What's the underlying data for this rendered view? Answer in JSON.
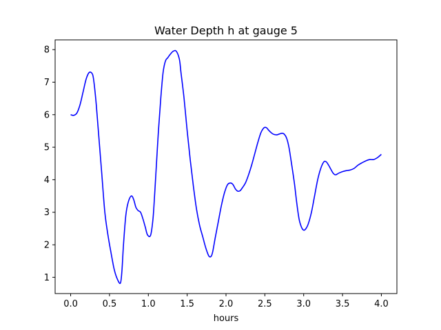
{
  "chart_data": {
    "type": "line",
    "title": "Water Depth h at gauge 5",
    "xlabel": "hours",
    "ylabel": "",
    "xlim": [
      -0.2,
      4.2
    ],
    "ylim": [
      0.5,
      8.3
    ],
    "xticks": [
      0.0,
      0.5,
      1.0,
      1.5,
      2.0,
      2.5,
      3.0,
      3.5,
      4.0
    ],
    "xtick_labels": [
      "0.0",
      "0.5",
      "1.0",
      "1.5",
      "2.0",
      "2.5",
      "3.0",
      "3.5",
      "4.0"
    ],
    "yticks": [
      1,
      2,
      3,
      4,
      5,
      6,
      7,
      8
    ],
    "ytick_labels": [
      "1",
      "2",
      "3",
      "4",
      "5",
      "6",
      "7",
      "8"
    ],
    "grid": false,
    "series": [
      {
        "color": "#0000ff",
        "x": [
          0.0,
          0.04,
          0.08,
          0.12,
          0.16,
          0.2,
          0.24,
          0.28,
          0.3,
          0.33,
          0.36,
          0.4,
          0.44,
          0.48,
          0.52,
          0.56,
          0.6,
          0.64,
          0.66,
          0.68,
          0.71,
          0.74,
          0.78,
          0.81,
          0.84,
          0.87,
          0.9,
          0.93,
          0.96,
          0.99,
          1.03,
          1.06,
          1.08,
          1.1,
          1.13,
          1.16,
          1.19,
          1.22,
          1.25,
          1.28,
          1.32,
          1.36,
          1.4,
          1.42,
          1.46,
          1.5,
          1.54,
          1.58,
          1.62,
          1.66,
          1.7,
          1.74,
          1.78,
          1.81,
          1.83,
          1.86,
          1.9,
          1.94,
          1.98,
          2.02,
          2.06,
          2.09,
          2.12,
          2.15,
          2.18,
          2.21,
          2.25,
          2.29,
          2.33,
          2.37,
          2.41,
          2.45,
          2.49,
          2.52,
          2.55,
          2.58,
          2.61,
          2.65,
          2.68,
          2.72,
          2.75,
          2.78,
          2.81,
          2.84,
          2.88,
          2.91,
          2.94,
          2.97,
          3.0,
          3.03,
          3.06,
          3.1,
          3.14,
          3.18,
          3.22,
          3.26,
          3.29,
          3.32,
          3.35,
          3.38,
          3.41,
          3.45,
          3.5,
          3.55,
          3.6,
          3.65,
          3.7,
          3.75,
          3.8,
          3.85,
          3.9,
          3.95,
          4.0
        ],
        "y": [
          6.0,
          5.98,
          6.05,
          6.3,
          6.7,
          7.1,
          7.3,
          7.25,
          7.0,
          6.3,
          5.4,
          4.2,
          3.0,
          2.3,
          1.75,
          1.25,
          0.95,
          0.82,
          1.2,
          2.0,
          2.9,
          3.3,
          3.5,
          3.4,
          3.15,
          3.05,
          3.0,
          2.8,
          2.55,
          2.3,
          2.3,
          2.8,
          3.5,
          4.3,
          5.5,
          6.5,
          7.3,
          7.65,
          7.75,
          7.85,
          7.95,
          7.95,
          7.7,
          7.3,
          6.5,
          5.5,
          4.6,
          3.8,
          3.1,
          2.6,
          2.25,
          1.9,
          1.65,
          1.65,
          1.8,
          2.2,
          2.7,
          3.2,
          3.6,
          3.85,
          3.9,
          3.85,
          3.72,
          3.65,
          3.66,
          3.75,
          3.9,
          4.15,
          4.45,
          4.8,
          5.15,
          5.45,
          5.6,
          5.6,
          5.52,
          5.45,
          5.4,
          5.38,
          5.4,
          5.43,
          5.4,
          5.28,
          5.0,
          4.55,
          3.9,
          3.3,
          2.8,
          2.55,
          2.45,
          2.5,
          2.65,
          3.0,
          3.5,
          4.0,
          4.35,
          4.55,
          4.55,
          4.45,
          4.32,
          4.2,
          4.15,
          4.2,
          4.25,
          4.28,
          4.3,
          4.35,
          4.45,
          4.52,
          4.58,
          4.62,
          4.62,
          4.68,
          4.78
        ]
      }
    ]
  }
}
